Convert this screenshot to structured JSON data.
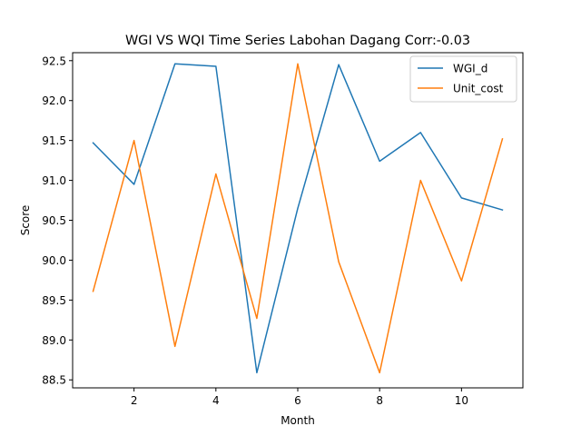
{
  "chart_data": {
    "type": "line",
    "title": "WGI VS WQI Time Series Labohan Dagang Corr:-0.03",
    "xlabel": "Month",
    "ylabel": "Score",
    "xlim": [
      0.5,
      11.5
    ],
    "ylim": [
      88.4,
      92.6
    ],
    "xticks": [
      2,
      4,
      6,
      8,
      10
    ],
    "yticks": [
      88.5,
      89.0,
      89.5,
      90.0,
      90.5,
      91.0,
      91.5,
      92.0,
      92.5
    ],
    "grid": false,
    "legend_position": "top-right",
    "x": [
      1,
      2,
      3,
      4,
      5,
      6,
      7,
      8,
      9,
      10,
      11
    ],
    "series": [
      {
        "name": "WGI_d",
        "color": "#1f77b4",
        "values": [
          91.47,
          90.95,
          92.46,
          92.43,
          88.59,
          90.65,
          92.45,
          91.24,
          91.6,
          90.78,
          90.63
        ]
      },
      {
        "name": "Unit_cost",
        "color": "#ff7f0e",
        "values": [
          89.61,
          91.5,
          88.92,
          91.08,
          89.27,
          92.46,
          89.98,
          88.59,
          91.0,
          89.74,
          91.52
        ]
      }
    ]
  }
}
